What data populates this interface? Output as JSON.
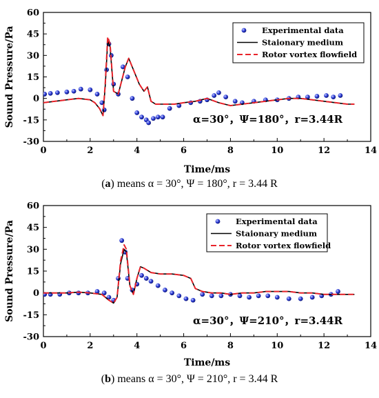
{
  "captions": [
    {
      "prefix": "(",
      "tag": "a",
      "rest": ") means α = 30°, Ψ = 180°, r = 3.44 R"
    },
    {
      "prefix": "(",
      "tag": "b",
      "rest": ") means α = 30°, Ψ = 210°, r = 3.44 R"
    }
  ],
  "colors": {
    "experimental": "#2b3bd6",
    "stationary": "#000000",
    "rotor": "#e8232a"
  },
  "chart_data": [
    {
      "type": "line",
      "xlabel": "Time/ms",
      "ylabel": "Sound Pressure/Pa",
      "xlim": [
        0,
        14
      ],
      "ylim": [
        -30,
        60
      ],
      "xticks": [
        "0",
        "2",
        "4",
        "6",
        "8",
        "10",
        "12",
        "14"
      ],
      "yticks": [
        "-30",
        "-15",
        "0",
        "15",
        "30",
        "45",
        "60"
      ],
      "annotation": "α=30°，Ψ=180°，r=3.44R",
      "legend": {
        "position": "top-right"
      },
      "series": [
        {
          "name": "Experimental data",
          "style": "markers",
          "points": [
            [
              0.05,
              3
            ],
            [
              0.3,
              3.5
            ],
            [
              0.6,
              4
            ],
            [
              1.0,
              4.5
            ],
            [
              1.3,
              5
            ],
            [
              1.6,
              6.5
            ],
            [
              2.0,
              6
            ],
            [
              2.3,
              3
            ],
            [
              2.5,
              -3
            ],
            [
              2.6,
              -8
            ],
            [
              2.7,
              20
            ],
            [
              2.8,
              38
            ],
            [
              2.9,
              30
            ],
            [
              3.0,
              10
            ],
            [
              3.2,
              3
            ],
            [
              3.4,
              22
            ],
            [
              3.6,
              15
            ],
            [
              3.8,
              0
            ],
            [
              4.0,
              -10
            ],
            [
              4.2,
              -13
            ],
            [
              4.4,
              -15
            ],
            [
              4.5,
              -17
            ],
            [
              4.7,
              -14
            ],
            [
              4.9,
              -13
            ],
            [
              5.1,
              -13
            ],
            [
              5.4,
              -7
            ],
            [
              5.8,
              -5
            ],
            [
              6.3,
              -3
            ],
            [
              6.7,
              -2
            ],
            [
              7.0,
              -1
            ],
            [
              7.3,
              2
            ],
            [
              7.5,
              4
            ],
            [
              7.8,
              1
            ],
            [
              8.2,
              -2
            ],
            [
              8.5,
              -3
            ],
            [
              9.0,
              -2
            ],
            [
              9.5,
              -1
            ],
            [
              10.0,
              -1
            ],
            [
              10.5,
              0
            ],
            [
              10.9,
              1
            ],
            [
              11.3,
              1
            ],
            [
              11.7,
              1.5
            ],
            [
              12.1,
              2
            ],
            [
              12.4,
              1
            ],
            [
              12.7,
              2
            ]
          ]
        },
        {
          "name": "Staionary medium",
          "style": "solid",
          "points": [
            [
              0,
              -3
            ],
            [
              0.5,
              -2
            ],
            [
              1.0,
              -1
            ],
            [
              1.5,
              0
            ],
            [
              2.0,
              -1
            ],
            [
              2.2,
              -3
            ],
            [
              2.4,
              -7
            ],
            [
              2.55,
              -12
            ],
            [
              2.65,
              10
            ],
            [
              2.75,
              40
            ],
            [
              2.85,
              36
            ],
            [
              3.0,
              5
            ],
            [
              3.2,
              3
            ],
            [
              3.5,
              22
            ],
            [
              3.65,
              28
            ],
            [
              3.9,
              18
            ],
            [
              4.1,
              10
            ],
            [
              4.3,
              5
            ],
            [
              4.45,
              8
            ],
            [
              4.6,
              -2
            ],
            [
              4.8,
              -4
            ],
            [
              5.2,
              -4
            ],
            [
              5.6,
              -4
            ],
            [
              6.0,
              -3
            ],
            [
              6.5,
              -2
            ],
            [
              7.0,
              0
            ],
            [
              7.5,
              -3
            ],
            [
              8.0,
              -5
            ],
            [
              8.5,
              -4
            ],
            [
              9.0,
              -3
            ],
            [
              9.5,
              -2
            ],
            [
              10.0,
              -1
            ],
            [
              10.5,
              0
            ],
            [
              11.0,
              0
            ],
            [
              11.5,
              -1
            ],
            [
              12.0,
              -2
            ],
            [
              12.5,
              -3
            ],
            [
              13.0,
              -4
            ],
            [
              13.3,
              -4
            ]
          ]
        },
        {
          "name": "Rotor vortex flowfield",
          "style": "dashed",
          "points": [
            [
              0,
              -3
            ],
            [
              0.5,
              -2
            ],
            [
              1.0,
              -1
            ],
            [
              1.5,
              0
            ],
            [
              2.0,
              -1
            ],
            [
              2.2,
              -3
            ],
            [
              2.4,
              -7
            ],
            [
              2.55,
              -12
            ],
            [
              2.65,
              12
            ],
            [
              2.75,
              43
            ],
            [
              2.85,
              38
            ],
            [
              3.0,
              5
            ],
            [
              3.2,
              3
            ],
            [
              3.5,
              22
            ],
            [
              3.65,
              28
            ],
            [
              3.9,
              18
            ],
            [
              4.1,
              10
            ],
            [
              4.3,
              5
            ],
            [
              4.45,
              8
            ],
            [
              4.6,
              -2
            ],
            [
              4.8,
              -4
            ],
            [
              5.2,
              -4
            ],
            [
              5.6,
              -4
            ],
            [
              6.0,
              -3
            ],
            [
              6.5,
              -2
            ],
            [
              7.0,
              0
            ],
            [
              7.5,
              -3
            ],
            [
              8.0,
              -5
            ],
            [
              8.5,
              -4
            ],
            [
              9.0,
              -3
            ],
            [
              9.5,
              -2
            ],
            [
              10.0,
              -1
            ],
            [
              10.5,
              0
            ],
            [
              11.0,
              0
            ],
            [
              11.5,
              -1
            ],
            [
              12.0,
              -2
            ],
            [
              12.5,
              -3
            ],
            [
              13.0,
              -4
            ],
            [
              13.3,
              -4
            ]
          ]
        }
      ]
    },
    {
      "type": "line",
      "xlabel": "Time/ms",
      "ylabel": "Sound Pressure/Pa",
      "xlim": [
        0,
        14
      ],
      "ylim": [
        -30,
        60
      ],
      "xticks": [
        "0",
        "2",
        "4",
        "6",
        "8",
        "10",
        "12",
        "14"
      ],
      "yticks": [
        "-30",
        "-15",
        "0",
        "15",
        "30",
        "45",
        "60"
      ],
      "annotation": "α=30°，Ψ=210°，r=3.44R",
      "legend": {
        "position": "top-right"
      },
      "series": [
        {
          "name": "Experimental data",
          "style": "markers",
          "points": [
            [
              0.05,
              -1
            ],
            [
              0.3,
              -1
            ],
            [
              0.7,
              -1
            ],
            [
              1.1,
              0
            ],
            [
              1.5,
              0
            ],
            [
              1.9,
              0
            ],
            [
              2.3,
              1
            ],
            [
              2.6,
              0
            ],
            [
              2.8,
              -3
            ],
            [
              3.0,
              -5
            ],
            [
              3.2,
              10
            ],
            [
              3.35,
              36
            ],
            [
              3.5,
              28
            ],
            [
              3.6,
              10
            ],
            [
              3.8,
              2
            ],
            [
              4.0,
              6
            ],
            [
              4.2,
              12
            ],
            [
              4.4,
              10
            ],
            [
              4.6,
              8
            ],
            [
              4.9,
              5
            ],
            [
              5.2,
              2
            ],
            [
              5.5,
              0
            ],
            [
              5.8,
              -2
            ],
            [
              6.1,
              -4
            ],
            [
              6.4,
              -5
            ],
            [
              6.8,
              -1
            ],
            [
              7.2,
              -2
            ],
            [
              7.6,
              -2
            ],
            [
              8.0,
              -1
            ],
            [
              8.4,
              -2
            ],
            [
              8.8,
              -3
            ],
            [
              9.2,
              -2
            ],
            [
              9.6,
              -2
            ],
            [
              10.0,
              -3
            ],
            [
              10.5,
              -4
            ],
            [
              11.0,
              -4
            ],
            [
              11.5,
              -3
            ],
            [
              11.9,
              -2
            ],
            [
              12.3,
              -1
            ],
            [
              12.6,
              1
            ]
          ]
        },
        {
          "name": "Staionary medium",
          "style": "solid",
          "points": [
            [
              0,
              0
            ],
            [
              0.5,
              0
            ],
            [
              1.0,
              0
            ],
            [
              1.5,
              0.5
            ],
            [
              2.0,
              0
            ],
            [
              2.5,
              -1
            ],
            [
              2.8,
              -5
            ],
            [
              3.0,
              -7
            ],
            [
              3.15,
              -3
            ],
            [
              3.3,
              20
            ],
            [
              3.45,
              30
            ],
            [
              3.55,
              28
            ],
            [
              3.7,
              5
            ],
            [
              3.85,
              -1
            ],
            [
              4.0,
              10
            ],
            [
              4.15,
              18
            ],
            [
              4.3,
              17
            ],
            [
              4.6,
              14
            ],
            [
              5.0,
              13
            ],
            [
              5.5,
              13
            ],
            [
              6.0,
              12
            ],
            [
              6.3,
              10
            ],
            [
              6.5,
              3
            ],
            [
              6.8,
              1
            ],
            [
              7.2,
              0
            ],
            [
              7.6,
              0
            ],
            [
              8.0,
              -1
            ],
            [
              8.5,
              0
            ],
            [
              9.0,
              0
            ],
            [
              9.5,
              1
            ],
            [
              10.0,
              1
            ],
            [
              10.5,
              1
            ],
            [
              11.0,
              0
            ],
            [
              11.5,
              0
            ],
            [
              12.0,
              -1
            ],
            [
              12.5,
              -1
            ],
            [
              13.0,
              -1
            ],
            [
              13.3,
              -1
            ]
          ]
        },
        {
          "name": "Rotor vortex flowfield",
          "style": "dashed",
          "points": [
            [
              0,
              0
            ],
            [
              0.5,
              0
            ],
            [
              1.0,
              0
            ],
            [
              1.5,
              0.5
            ],
            [
              2.0,
              0
            ],
            [
              2.5,
              -1
            ],
            [
              2.8,
              -5
            ],
            [
              3.0,
              -7
            ],
            [
              3.15,
              -3
            ],
            [
              3.3,
              22
            ],
            [
              3.45,
              33
            ],
            [
              3.55,
              30
            ],
            [
              3.7,
              5
            ],
            [
              3.85,
              -1
            ],
            [
              4.0,
              10
            ],
            [
              4.15,
              18
            ],
            [
              4.3,
              17
            ],
            [
              4.6,
              14
            ],
            [
              5.0,
              13
            ],
            [
              5.5,
              13
            ],
            [
              6.0,
              12
            ],
            [
              6.3,
              10
            ],
            [
              6.5,
              3
            ],
            [
              6.8,
              1
            ],
            [
              7.2,
              0
            ],
            [
              7.6,
              0
            ],
            [
              8.0,
              -1
            ],
            [
              8.5,
              0
            ],
            [
              9.0,
              0
            ],
            [
              9.5,
              1
            ],
            [
              10.0,
              1
            ],
            [
              10.5,
              1
            ],
            [
              11.0,
              0
            ],
            [
              11.5,
              0
            ],
            [
              12.0,
              -1
            ],
            [
              12.5,
              -1
            ],
            [
              13.0,
              -1
            ],
            [
              13.3,
              -1
            ]
          ]
        }
      ]
    }
  ]
}
